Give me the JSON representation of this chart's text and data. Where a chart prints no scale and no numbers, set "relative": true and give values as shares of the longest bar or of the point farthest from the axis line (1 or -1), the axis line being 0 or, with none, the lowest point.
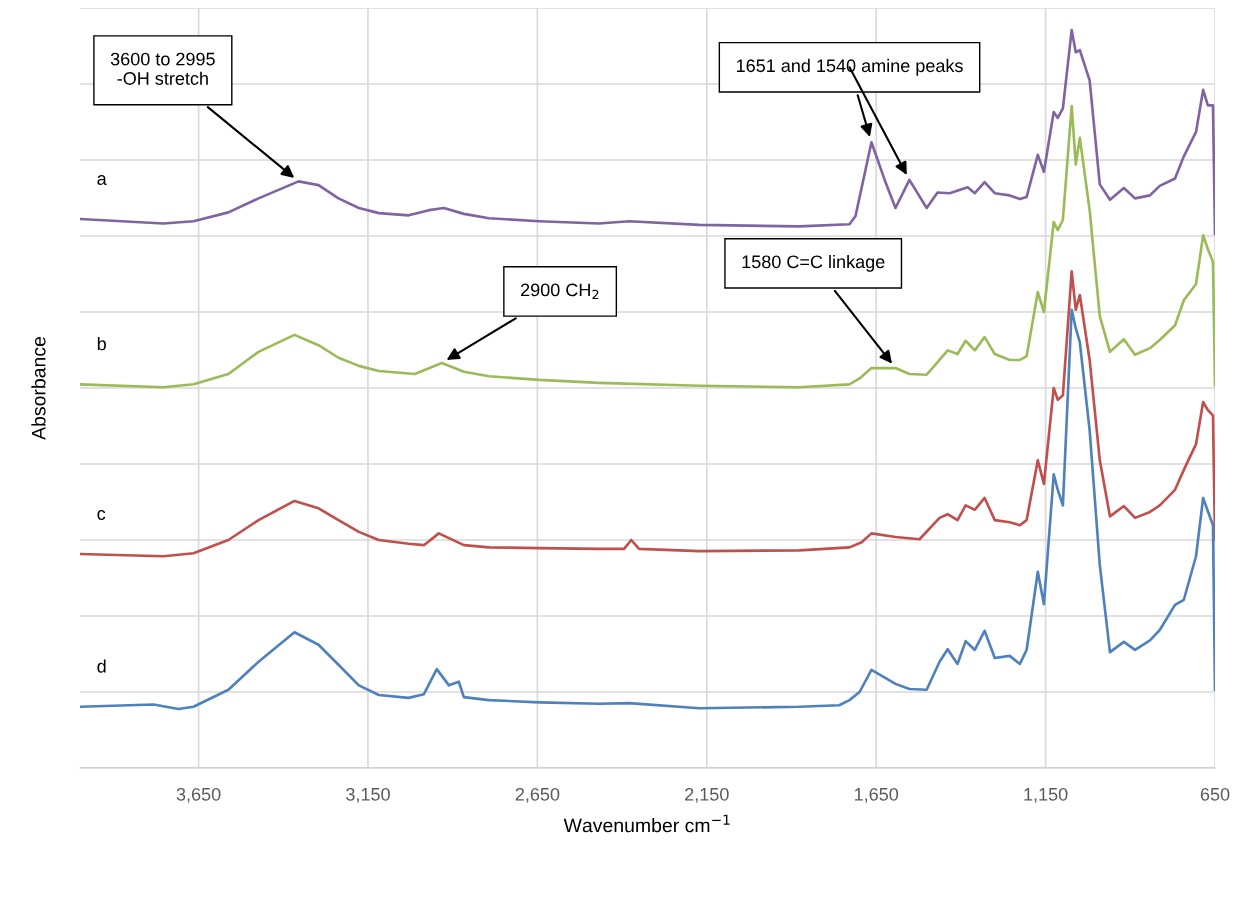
{
  "chart_data": {
    "type": "line",
    "relative": true,
    "xlabel": "Wavenumber cm$^{−1}$",
    "ylabel": "Absorbance",
    "xlim": [
      4000,
      650
    ],
    "xticks": [
      {
        "value": 3650,
        "label": "3,650"
      },
      {
        "value": 3150,
        "label": "3,150"
      },
      {
        "value": 2650,
        "label": "2,650"
      },
      {
        "value": 2150,
        "label": "2,150"
      },
      {
        "value": 1650,
        "label": "1,650"
      },
      {
        "value": 1150,
        "label": "1,150"
      },
      {
        "value": 650,
        "label": "650"
      }
    ],
    "tick_labels": "x",
    "grid": true,
    "legend": false,
    "marker": "none",
    "line_style": "solid",
    "series": [
      {
        "name": "a",
        "color": "#8064a2",
        "x": [
          4000,
          3754,
          3665,
          3562,
          3473,
          3355,
          3296,
          3237,
          3177,
          3118,
          3030,
          2970,
          2926,
          2867,
          2793,
          2645,
          2468,
          2379,
          2172,
          1877,
          1729,
          1711,
          1664,
          1625,
          1593,
          1552,
          1501,
          1469,
          1433,
          1380,
          1359,
          1330,
          1300,
          1256,
          1226,
          1206,
          1173,
          1155,
          1126,
          1114,
          1099,
          1073,
          1061,
          1049,
          1020,
          990,
          960,
          919,
          886,
          842,
          813,
          768,
          742,
          706,
          685,
          671,
          656,
          650
        ],
        "values": [
          0.744,
          0.738,
          0.741,
          0.753,
          0.772,
          0.795,
          0.79,
          0.772,
          0.759,
          0.752,
          0.749,
          0.756,
          0.759,
          0.751,
          0.745,
          0.741,
          0.738,
          0.741,
          0.736,
          0.734,
          0.737,
          0.748,
          0.848,
          0.797,
          0.759,
          0.797,
          0.759,
          0.78,
          0.779,
          0.787,
          0.779,
          0.794,
          0.779,
          0.776,
          0.771,
          0.774,
          0.831,
          0.808,
          0.889,
          0.881,
          0.894,
          1.0,
          0.97,
          0.973,
          0.932,
          0.791,
          0.77,
          0.786,
          0.772,
          0.776,
          0.789,
          0.799,
          0.829,
          0.862,
          0.919,
          0.898,
          0.898,
          0.724
        ]
      },
      {
        "name": "b",
        "color": "#9bbb59",
        "x": [
          4000,
          3754,
          3665,
          3562,
          3473,
          3367,
          3296,
          3237,
          3177,
          3118,
          3012,
          2932,
          2867,
          2793,
          2645,
          2468,
          2172,
          1877,
          1729,
          1699,
          1664,
          1593,
          1552,
          1501,
          1463,
          1439,
          1410,
          1386,
          1359,
          1330,
          1300,
          1256,
          1226,
          1206,
          1173,
          1155,
          1126,
          1114,
          1099,
          1073,
          1061,
          1049,
          1020,
          990,
          960,
          919,
          886,
          842,
          813,
          768,
          742,
          706,
          685,
          671,
          656,
          650
        ],
        "values": [
          0.52,
          0.516,
          0.52,
          0.534,
          0.564,
          0.587,
          0.573,
          0.556,
          0.545,
          0.538,
          0.534,
          0.549,
          0.537,
          0.531,
          0.526,
          0.522,
          0.518,
          0.516,
          0.52,
          0.528,
          0.542,
          0.542,
          0.534,
          0.533,
          0.553,
          0.566,
          0.561,
          0.579,
          0.566,
          0.584,
          0.561,
          0.553,
          0.553,
          0.558,
          0.645,
          0.618,
          0.74,
          0.729,
          0.743,
          0.897,
          0.818,
          0.854,
          0.756,
          0.612,
          0.564,
          0.581,
          0.56,
          0.569,
          0.58,
          0.6,
          0.634,
          0.656,
          0.722,
          0.703,
          0.686,
          0.519
        ]
      },
      {
        "name": "c",
        "color": "#c0504d",
        "x": [
          4000,
          3754,
          3665,
          3562,
          3473,
          3367,
          3296,
          3237,
          3177,
          3118,
          3030,
          2985,
          2941,
          2867,
          2793,
          2645,
          2468,
          2394,
          2373,
          2350,
          2172,
          1877,
          1729,
          1693,
          1664,
          1593,
          1522,
          1463,
          1439,
          1410,
          1386,
          1359,
          1330,
          1300,
          1256,
          1226,
          1206,
          1173,
          1155,
          1126,
          1114,
          1099,
          1073,
          1061,
          1049,
          1020,
          990,
          960,
          919,
          886,
          842,
          813,
          768,
          742,
          706,
          685,
          671,
          656,
          650
        ],
        "values": [
          0.29,
          0.287,
          0.291,
          0.309,
          0.336,
          0.362,
          0.352,
          0.336,
          0.32,
          0.309,
          0.304,
          0.302,
          0.318,
          0.302,
          0.299,
          0.298,
          0.297,
          0.297,
          0.309,
          0.297,
          0.294,
          0.295,
          0.299,
          0.306,
          0.318,
          0.313,
          0.31,
          0.339,
          0.344,
          0.336,
          0.356,
          0.35,
          0.366,
          0.336,
          0.333,
          0.329,
          0.336,
          0.417,
          0.385,
          0.515,
          0.499,
          0.505,
          0.673,
          0.621,
          0.641,
          0.553,
          0.417,
          0.341,
          0.355,
          0.339,
          0.347,
          0.356,
          0.377,
          0.404,
          0.439,
          0.496,
          0.485,
          0.478,
          0.309
        ]
      },
      {
        "name": "d",
        "color": "#4f81bd",
        "x": [
          4000,
          3783,
          3709,
          3665,
          3562,
          3473,
          3367,
          3296,
          3237,
          3177,
          3118,
          3030,
          2985,
          2947,
          2911,
          2882,
          2867,
          2793,
          2645,
          2468,
          2379,
          2172,
          1877,
          1759,
          1729,
          1699,
          1664,
          1593,
          1552,
          1501,
          1463,
          1439,
          1410,
          1386,
          1359,
          1330,
          1300,
          1256,
          1226,
          1206,
          1173,
          1155,
          1126,
          1114,
          1099,
          1073,
          1061,
          1049,
          1020,
          990,
          960,
          919,
          886,
          842,
          813,
          768,
          742,
          706,
          685,
          671,
          656,
          650
        ],
        "values": [
          0.083,
          0.086,
          0.08,
          0.083,
          0.106,
          0.144,
          0.184,
          0.167,
          0.14,
          0.112,
          0.099,
          0.095,
          0.1,
          0.134,
          0.112,
          0.117,
          0.096,
          0.092,
          0.089,
          0.087,
          0.088,
          0.081,
          0.083,
          0.085,
          0.092,
          0.103,
          0.133,
          0.114,
          0.107,
          0.106,
          0.144,
          0.161,
          0.141,
          0.172,
          0.16,
          0.186,
          0.149,
          0.152,
          0.141,
          0.16,
          0.266,
          0.222,
          0.398,
          0.377,
          0.356,
          0.621,
          0.596,
          0.577,
          0.458,
          0.275,
          0.157,
          0.171,
          0.16,
          0.173,
          0.187,
          0.221,
          0.228,
          0.287,
          0.366,
          0.348,
          0.329,
          0.106
        ]
      }
    ],
    "annotations": [
      {
        "text": "3600 to 2995\n-OH stretch",
        "x": 3355,
        "y": 0.795
      },
      {
        "text": "1651 and 1540 amine peaks",
        "x": 1664,
        "y": 0.848
      },
      {
        "text": "2900 CH$_{2}$",
        "x": 2932,
        "y": 0.549
      },
      {
        "text": "1580 C=C linkage",
        "x": 1593,
        "y": 0.542
      }
    ]
  }
}
